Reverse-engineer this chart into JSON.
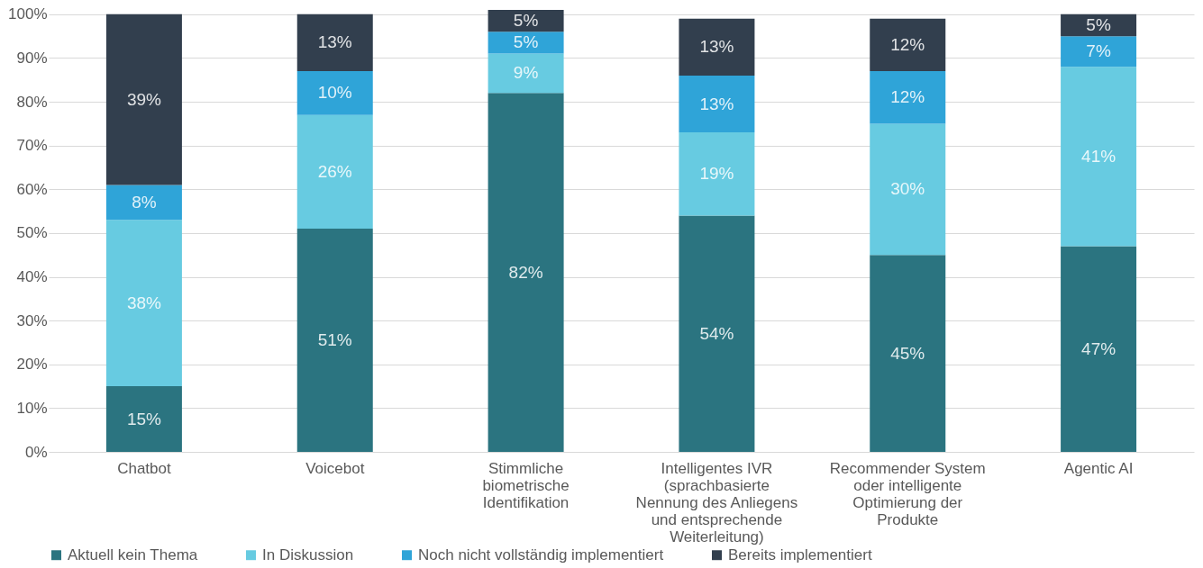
{
  "chart_data": {
    "type": "bar",
    "stacked": true,
    "categories": [
      "Chatbot",
      "Voicebot",
      "Stimmliche biometrische Identifikation",
      "Intelligentes IVR (sprachbasierte Nennung des Anliegens und entsprechende Weiterleitung)",
      "Recommender System oder intelligente Optimierung der Produkte",
      "Agentic AI"
    ],
    "series": [
      {
        "name": "Aktuell kein Thema",
        "color": "#2b7480",
        "values": [
          15,
          51,
          82,
          54,
          45,
          47
        ],
        "value_labels": [
          "15%",
          "51%",
          "82%",
          "54%",
          "45%",
          "47%"
        ]
      },
      {
        "name": "In Diskussion",
        "color": "#67cbe1",
        "values": [
          38,
          26,
          9,
          19,
          30,
          41
        ],
        "value_labels": [
          "38%",
          "26%",
          "9%",
          "19%",
          "30%",
          "41%"
        ]
      },
      {
        "name": "Noch nicht vollständig implementiert",
        "color": "#2fa4d8",
        "values": [
          8,
          10,
          5,
          13,
          12,
          7
        ],
        "value_labels": [
          "8%",
          "10%",
          "5%",
          "13%",
          "12%",
          "7%"
        ]
      },
      {
        "name": "Bereits implementiert",
        "color": "#323f4e",
        "values": [
          39,
          13,
          5,
          13,
          12,
          5
        ],
        "value_labels": [
          "39%",
          "13%",
          "5%",
          "13%",
          "12%",
          "5%"
        ]
      }
    ],
    "ylim": [
      0,
      101
    ],
    "yticks": [
      {
        "value": 0,
        "label": "0%"
      },
      {
        "value": 10,
        "label": "10%"
      },
      {
        "value": 20,
        "label": "20%"
      },
      {
        "value": 30,
        "label": "30%"
      },
      {
        "value": 40,
        "label": "40%"
      },
      {
        "value": 50,
        "label": "50%"
      },
      {
        "value": 60,
        "label": "60%"
      },
      {
        "value": 70,
        "label": "70%"
      },
      {
        "value": 80,
        "label": "80%"
      },
      {
        "value": 90,
        "label": "90%"
      },
      {
        "value": 100,
        "label": "100%"
      }
    ],
    "grid": "y",
    "legend": "bottom"
  }
}
